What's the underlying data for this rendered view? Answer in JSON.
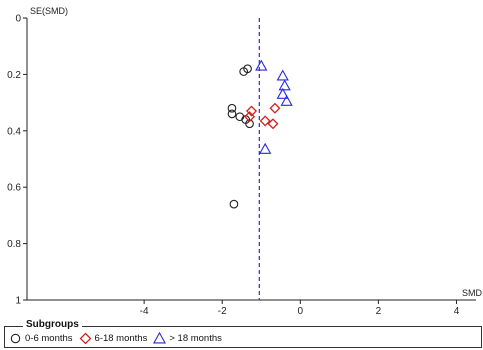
{
  "chart_data": {
    "type": "scatter",
    "chart_kind": "funnel plot",
    "xlabel": "SMD",
    "ylabel": "SE(SMD)",
    "xlim": [
      -7,
      4.5
    ],
    "ylim": [
      0,
      1
    ],
    "y_inverted": true,
    "xticks": [
      -4,
      -2,
      0,
      2,
      4
    ],
    "yticks": [
      0,
      0.2,
      0.4,
      0.6,
      0.8,
      1
    ],
    "pooled_estimate_line": {
      "x": -1.05,
      "style": "dashed",
      "color": "#2a2adf"
    },
    "legend": {
      "title": "Subgroups",
      "placement": "bottom"
    },
    "series": [
      {
        "name": "0-6 months",
        "marker": "circle",
        "color": "#222222",
        "points": [
          {
            "x": -1.35,
            "y": 0.18
          },
          {
            "x": -1.45,
            "y": 0.19
          },
          {
            "x": -1.75,
            "y": 0.32
          },
          {
            "x": -1.75,
            "y": 0.34
          },
          {
            "x": -1.55,
            "y": 0.35
          },
          {
            "x": -1.4,
            "y": 0.36
          },
          {
            "x": -1.3,
            "y": 0.375
          },
          {
            "x": -1.7,
            "y": 0.66
          }
        ]
      },
      {
        "name": "6-18 months",
        "marker": "diamond",
        "color": "#d42020",
        "points": [
          {
            "x": -1.25,
            "y": 0.33
          },
          {
            "x": -1.3,
            "y": 0.35
          },
          {
            "x": -0.65,
            "y": 0.32
          },
          {
            "x": -0.9,
            "y": 0.365
          },
          {
            "x": -0.7,
            "y": 0.375
          }
        ]
      },
      {
        "name": "> 18 months",
        "marker": "triangle",
        "color": "#2a2adf",
        "points": [
          {
            "x": -1.0,
            "y": 0.17
          },
          {
            "x": -0.45,
            "y": 0.205
          },
          {
            "x": -0.4,
            "y": 0.24
          },
          {
            "x": -0.45,
            "y": 0.27
          },
          {
            "x": -0.35,
            "y": 0.295
          },
          {
            "x": -0.9,
            "y": 0.465
          }
        ]
      }
    ]
  }
}
